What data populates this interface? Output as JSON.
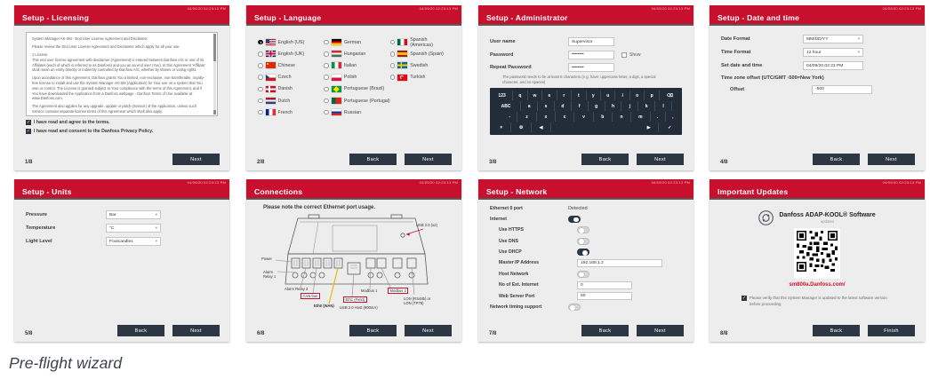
{
  "caption": "Pre-flight wizard",
  "timestamp": "04/09/20 02:23:13 PM",
  "buttons": {
    "back": "Back",
    "next": "Next",
    "finish": "Finish"
  },
  "panels": {
    "licensing": {
      "title": "Setup - Licensing",
      "page": "1/8",
      "paragraphs": [
        "System Manager AK-SM - End User License Agreement and Disclaimer",
        "Please review the End User License Agreement and Disclaimer which apply for all your use.",
        "1 License",
        "This end user license agreement with disclaimer (Agreement) is entered between Danfoss A/S or one of its Affiliates (each of which is referred to as Danfoss) and you as an end user (You). In this Agreement 'Affiliate' shall mean an entity directly or indirectly controlled by Danfoss A/S, whether by shares or voting rights.",
        "Upon acceptance of this Agreement, Danfoss grants You a limited, non-exclusive, non-transferable, royalty-free license to install and use the System Manager AK-SM (Application) for Your use on a system that You own or control. The License is granted subject to Your compliance with the terms of this Agreement, and if You have downloaded the Application from a Danfoss webpage - Danfoss Terms of Use available at www.Danfoss.com.",
        "The Agreement also applies for any upgrade, update or patch (Service) of the Application, unless such Service contains separate license terms of this Agreement which shall also apply."
      ],
      "checkboxes": [
        "I have read and agree to the terms.",
        "I have read and consent to the Danfoss Privacy Policy."
      ]
    },
    "language": {
      "title": "Setup - Language",
      "page": "2/8",
      "columns": [
        [
          {
            "label": "English (US)",
            "flag": "us",
            "selected": true
          },
          {
            "label": "English (UK)",
            "flag": "uk",
            "selected": false
          },
          {
            "label": "Chinese",
            "flag": "cn",
            "selected": false
          },
          {
            "label": "Czech",
            "flag": "cz",
            "selected": false
          },
          {
            "label": "Danish",
            "flag": "dk",
            "selected": false
          },
          {
            "label": "Dutch",
            "flag": "nl",
            "selected": false
          },
          {
            "label": "French",
            "flag": "fr",
            "selected": false
          }
        ],
        [
          {
            "label": "German",
            "flag": "de",
            "selected": false
          },
          {
            "label": "Hungarian",
            "flag": "hu",
            "selected": false
          },
          {
            "label": "Italian",
            "flag": "it",
            "selected": false
          },
          {
            "label": "Polish",
            "flag": "pl",
            "selected": false
          },
          {
            "label": "Portuguese (Brazil)",
            "flag": "br",
            "selected": false
          },
          {
            "label": "Portuguese (Portugal)",
            "flag": "pt",
            "selected": false
          },
          {
            "label": "Russian",
            "flag": "ru",
            "selected": false
          }
        ],
        [
          {
            "label": "Spanish (Americas)",
            "flag": "mx",
            "selected": false
          },
          {
            "label": "Spanish (Spain)",
            "flag": "es",
            "selected": false
          },
          {
            "label": "Swedish",
            "flag": "se",
            "selected": false
          },
          {
            "label": "Turkish",
            "flag": "tr",
            "selected": false
          }
        ]
      ]
    },
    "administrator": {
      "title": "Setup - Administrator",
      "page": "3/8",
      "user_name_label": "User name",
      "user_name_value": "Supervisor",
      "password_label": "Password",
      "password_value": "••••••••",
      "show_label": "Show",
      "repeat_password_label": "Repeat Password",
      "repeat_password_value": "••••••••",
      "hint": "The password needs to be at least 8 characters (e.g. have: uppercase letter, a digit, a special character, and no spaces)",
      "keyboard_rows": [
        [
          {
            "t": "123",
            "w": 1.5,
            "n": "key-123"
          },
          {
            "t": "q"
          },
          {
            "t": "w"
          },
          {
            "t": "e"
          },
          {
            "t": "r"
          },
          {
            "t": "t"
          },
          {
            "t": "y"
          },
          {
            "t": "u"
          },
          {
            "t": "i"
          },
          {
            "t": "o"
          },
          {
            "t": "p"
          },
          {
            "t": "⌫",
            "w": 1.5,
            "n": "backspace-key"
          }
        ],
        [
          {
            "t": "ABC",
            "w": 1.8,
            "n": "key-abc"
          },
          {
            "t": "a"
          },
          {
            "t": "s"
          },
          {
            "t": "d"
          },
          {
            "t": "f"
          },
          {
            "t": "g"
          },
          {
            "t": "h"
          },
          {
            "t": "j"
          },
          {
            "t": "k"
          },
          {
            "t": "l"
          },
          {
            "t": "",
            "w": 0.5,
            "n": "spacer"
          }
        ],
        [
          {
            "t": "",
            "w": 0.6,
            "n": "spacer"
          },
          {
            "t": "-",
            "w": 0.8
          },
          {
            "t": "z"
          },
          {
            "t": "x"
          },
          {
            "t": "c"
          },
          {
            "t": "v"
          },
          {
            "t": "b"
          },
          {
            "t": "n"
          },
          {
            "t": "m"
          },
          {
            "t": ".",
            "w": 0.8
          },
          {
            "t": ",",
            "w": 0.8
          }
        ],
        [
          {
            "t": "×",
            "n": "close-key"
          },
          {
            "t": "⚙",
            "n": "symbols-key"
          },
          {
            "t": "◀",
            "n": "cursor-left-key"
          },
          {
            "t": "",
            "w": 4.6,
            "n": "space-key"
          },
          {
            "t": "▶",
            "n": "cursor-right-key"
          },
          {
            "t": "✓",
            "w": 1.1,
            "n": "confirm-key"
          }
        ]
      ]
    },
    "datetime": {
      "title": "Setup - Date and time",
      "page": "4/8",
      "rows": [
        {
          "label": "Date Format",
          "value": "MM/DD/YY",
          "type": "select"
        },
        {
          "label": "Time Format",
          "value": "12 hour",
          "type": "select"
        },
        {
          "label": "Set date and time",
          "value": "04/09/20 02:23 PM",
          "type": "input"
        },
        {
          "label": "Time zone offset (UTC/GMT  -500=New York)",
          "type": "heading"
        },
        {
          "label": "Offset",
          "value": "-500",
          "type": "input",
          "indent": true
        }
      ]
    },
    "units": {
      "title": "Setup - Units",
      "page": "5/8",
      "rows": [
        {
          "label": "Pressure",
          "value": "Bar",
          "type": "select"
        },
        {
          "label": "Temperature",
          "value": "°C",
          "type": "select"
        },
        {
          "label": "Light Level",
          "value": "Footcandles",
          "type": "select"
        }
      ]
    },
    "connections": {
      "title": "Connections",
      "page": "6/8",
      "note": "Please note the correct Ethernet port usage.",
      "labels": {
        "usb_top": "USB 2.0 (x2)",
        "power": "Power",
        "alarm_relay_1": "Alarm\nRelay 1",
        "alarm_relay_2": "Alarm Relay 2",
        "can_bus": "CAN bus",
        "eth0": "Eth0 (WAN)",
        "eth1": "Eth1 (Field)",
        "usb_host": "USB 2.0 Host (800mA)",
        "modbus_1": "Modbus 1",
        "modbus_2": "Modbus 2",
        "lon": "LON (RS485) or\nLON (TP78)"
      }
    },
    "network": {
      "title": "Setup - Network",
      "page": "7/8",
      "rows": [
        {
          "label": "Ethernet 0 port",
          "type": "static",
          "value": "Detected"
        },
        {
          "label": "Internet",
          "type": "toggle",
          "on": true
        },
        {
          "label": "Use HTTPS",
          "type": "toggle",
          "on": false,
          "indent": true
        },
        {
          "label": "Use DNS",
          "type": "toggle",
          "on": false,
          "indent": true
        },
        {
          "label": "Use DHCP",
          "type": "toggle",
          "on": true,
          "indent": true
        },
        {
          "label": "Master IP Address",
          "type": "input",
          "value": "192.168.1.2",
          "indent": true,
          "wide": true
        },
        {
          "label": "Host Network",
          "type": "toggle",
          "on": false,
          "indent": true
        },
        {
          "label": "No of Ext. Internet",
          "type": "input",
          "value": "0",
          "indent": true
        },
        {
          "label": "Web Server Port",
          "type": "input",
          "value": "80",
          "indent": true
        },
        {
          "label": "Network timing support",
          "type": "toggle",
          "on": false
        }
      ]
    },
    "updates": {
      "title": "Important Updates",
      "page": "8/8",
      "software_title": "Danfoss ADAP-KOOL® Software",
      "software_subtitle": "updates",
      "link": "sm800a.Danfoss.com/",
      "checkbox": "Please verify that this System Manager is updated to the latest software version before proceeding"
    }
  }
}
